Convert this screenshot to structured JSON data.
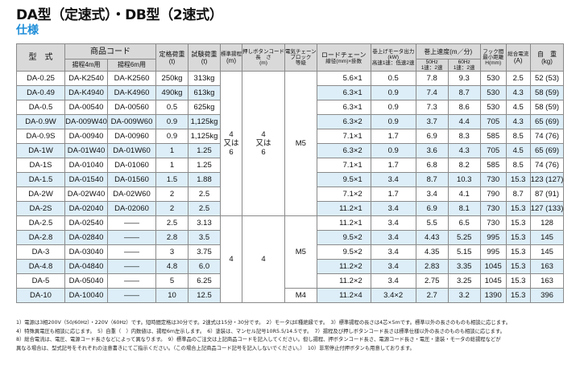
{
  "title": "DA型（定速式）・DB型（2速式）",
  "subtitle": "仕様",
  "headers": {
    "model": "型　式",
    "code": "商品コード",
    "lift4": "揚程4m用",
    "lift6": "揚程6m用",
    "rated_load": "定格荷重",
    "rated_load_unit": "(t)",
    "test_load": "試験荷重",
    "test_load_unit": "(t)",
    "std_lift": "標準揚程",
    "std_lift_unit": "(m)",
    "cord_len_1": "押しボタンコード",
    "cord_len_2": "長　さ",
    "cord_len_unit": "(m)",
    "chain_block_1": "電気チェーン",
    "chain_block_2": "ブロック",
    "chain_block_3": "等級",
    "load_chain": "ロードチェーン",
    "load_chain_sub": "線径(mm)×掛数",
    "motor_1": "巻上げモータ出力",
    "motor_2": "(kW)",
    "motor_3": "高速1速：低速2速",
    "speed": "巻上速度(m／分)",
    "hz50": "50Hz",
    "hz60": "60Hz",
    "speed_sub": "1速：2速",
    "hook_1": "フック間",
    "hook_2": "最小距離",
    "hook_3": "H(mm)",
    "current_1": "総合電流",
    "current_2": "(A)",
    "weight_1": "自　重",
    "weight_2": "(kg)"
  },
  "merged": {
    "lift_group1_a": "4",
    "lift_group1_b": "又は",
    "lift_group1_c": "6",
    "cord_group1_a": "4",
    "cord_group1_b": "又は",
    "cord_group1_c": "6",
    "grade_group1": "M5",
    "lift_group2": "4",
    "cord_group2": "4",
    "grade_group2": "M5",
    "grade_last": "M4"
  },
  "rows": [
    {
      "model": "DA-0.25",
      "c4": "DA-K2540",
      "c6": "DA-K2560",
      "rated": "250kg",
      "test": "313kg",
      "chain": "5.6×1",
      "motor": "0.5",
      "s50": "7.8",
      "s60": "9.3",
      "hook": "530",
      "amp": "2.5",
      "weight": "52 (53)"
    },
    {
      "model": "DA-0.49",
      "c4": "DA-K4940",
      "c6": "DA-K4960",
      "rated": "490kg",
      "test": "613kg",
      "chain": "6.3×1",
      "motor": "0.9",
      "s50": "7.4",
      "s60": "8.7",
      "hook": "530",
      "amp": "4.3",
      "weight": "58 (59)"
    },
    {
      "model": "DA-0.5",
      "c4": "DA-00540",
      "c6": "DA-00560",
      "rated": "0.5",
      "test": "625kg",
      "chain": "6.3×1",
      "motor": "0.9",
      "s50": "7.3",
      "s60": "8.6",
      "hook": "530",
      "amp": "4.5",
      "weight": "58 (59)"
    },
    {
      "model": "DA-0.9W",
      "c4": "DA-009W40",
      "c6": "DA-009W60",
      "rated": "0.9",
      "test": "1,125kg",
      "chain": "6.3×2",
      "motor": "0.9",
      "s50": "3.7",
      "s60": "4.4",
      "hook": "705",
      "amp": "4.3",
      "weight": "65 (69)"
    },
    {
      "model": "DA-0.9S",
      "c4": "DA-00940",
      "c6": "DA-00960",
      "rated": "0.9",
      "test": "1,125kg",
      "chain": "7.1×1",
      "motor": "1.7",
      "s50": "6.9",
      "s60": "8.3",
      "hook": "585",
      "amp": "8.5",
      "weight": "74 (76)"
    },
    {
      "model": "DA-1W",
      "c4": "DA-01W40",
      "c6": "DA-01W60",
      "rated": "1",
      "test": "1.25",
      "chain": "6.3×2",
      "motor": "0.9",
      "s50": "3.6",
      "s60": "4.3",
      "hook": "705",
      "amp": "4.5",
      "weight": "65 (69)"
    },
    {
      "model": "DA-1S",
      "c4": "DA-01040",
      "c6": "DA-01060",
      "rated": "1",
      "test": "1.25",
      "chain": "7.1×1",
      "motor": "1.7",
      "s50": "6.8",
      "s60": "8.2",
      "hook": "585",
      "amp": "8.5",
      "weight": "74 (76)"
    },
    {
      "model": "DA-1.5",
      "c4": "DA-01540",
      "c6": "DA-01560",
      "rated": "1.5",
      "test": "1.88",
      "chain": "9.5×1",
      "motor": "3.4",
      "s50": "8.7",
      "s60": "10.3",
      "hook": "730",
      "amp": "15.3",
      "weight": "123 (127)"
    },
    {
      "model": "DA-2W",
      "c4": "DA-02W40",
      "c6": "DA-02W60",
      "rated": "2",
      "test": "2.5",
      "chain": "7.1×2",
      "motor": "1.7",
      "s50": "3.4",
      "s60": "4.1",
      "hook": "790",
      "amp": "8.7",
      "weight": "87 (91)"
    },
    {
      "model": "DA-2S",
      "c4": "DA-02040",
      "c6": "DA-02060",
      "rated": "2",
      "test": "2.5",
      "chain": "11.2×1",
      "motor": "3.4",
      "s50": "6.9",
      "s60": "8.1",
      "hook": "730",
      "amp": "15.3",
      "weight": "127 (133)"
    },
    {
      "model": "DA-2.5",
      "c4": "DA-02540",
      "c6": "——",
      "rated": "2.5",
      "test": "3.13",
      "chain": "11.2×1",
      "motor": "3.4",
      "s50": "5.5",
      "s60": "6.5",
      "hook": "730",
      "amp": "15.3",
      "weight": "128"
    },
    {
      "model": "DA-2.8",
      "c4": "DA-02840",
      "c6": "——",
      "rated": "2.8",
      "test": "3.5",
      "chain": "9.5×2",
      "motor": "3.4",
      "s50": "4.43",
      "s60": "5.25",
      "hook": "995",
      "amp": "15.3",
      "weight": "145"
    },
    {
      "model": "DA-3",
      "c4": "DA-03040",
      "c6": "——",
      "rated": "3",
      "test": "3.75",
      "chain": "9.5×2",
      "motor": "3.4",
      "s50": "4.35",
      "s60": "5.15",
      "hook": "995",
      "amp": "15.3",
      "weight": "145"
    },
    {
      "model": "DA-4.8",
      "c4": "DA-04840",
      "c6": "——",
      "rated": "4.8",
      "test": "6.0",
      "chain": "11.2×2",
      "motor": "3.4",
      "s50": "2.83",
      "s60": "3.35",
      "hook": "1045",
      "amp": "15.3",
      "weight": "163"
    },
    {
      "model": "DA-5",
      "c4": "DA-05040",
      "c6": "——",
      "rated": "5",
      "test": "6.25",
      "chain": "11.2×2",
      "motor": "3.4",
      "s50": "2.75",
      "s60": "3.25",
      "hook": "1045",
      "amp": "15.3",
      "weight": "163"
    },
    {
      "model": "DA-10",
      "c4": "DA-10040",
      "c6": "——",
      "rated": "10",
      "test": "12.5",
      "chain": "11.2×4",
      "motor": "3.4×2",
      "s50": "2.7",
      "s60": "3.2",
      "hook": "1390",
      "amp": "15.3",
      "weight": "396"
    }
  ],
  "notes": [
    "1）電源は3相200V（50/60Hz）・220V（60Hz）です。短時間定格は30分です。2速式は15分・30分です。　2）モータはE種絶縁です。　3）標準揚程の長さは4芯×5mです。標準以外の長さのものも相談に応じます。",
    "4）特殊異電圧も相談に応じます。　5）自重（　）内数値は、揚程6m左示します。　6）塗装は、マンセル記号10R5.5/14.5です。　7）揚程及び押しボタンコード長さは標準仕様以外の長さのものも相談に応じます。",
    "8）総合電流は、電圧、電源コード長さなどによって異なります。　9）標準品のご注文は上記商品コードを記入してください。但し揚程、押ボタンコード長さ、電源コード長さ・電圧・塗装・モータの総揚程などが",
    "異なる場合は、型式記号をそれぞれの注意書きにてご指示ください。（この場合上記商品コード記号を記入しないでください。）　10）非常停止付押ボタンも用意しております。"
  ]
}
